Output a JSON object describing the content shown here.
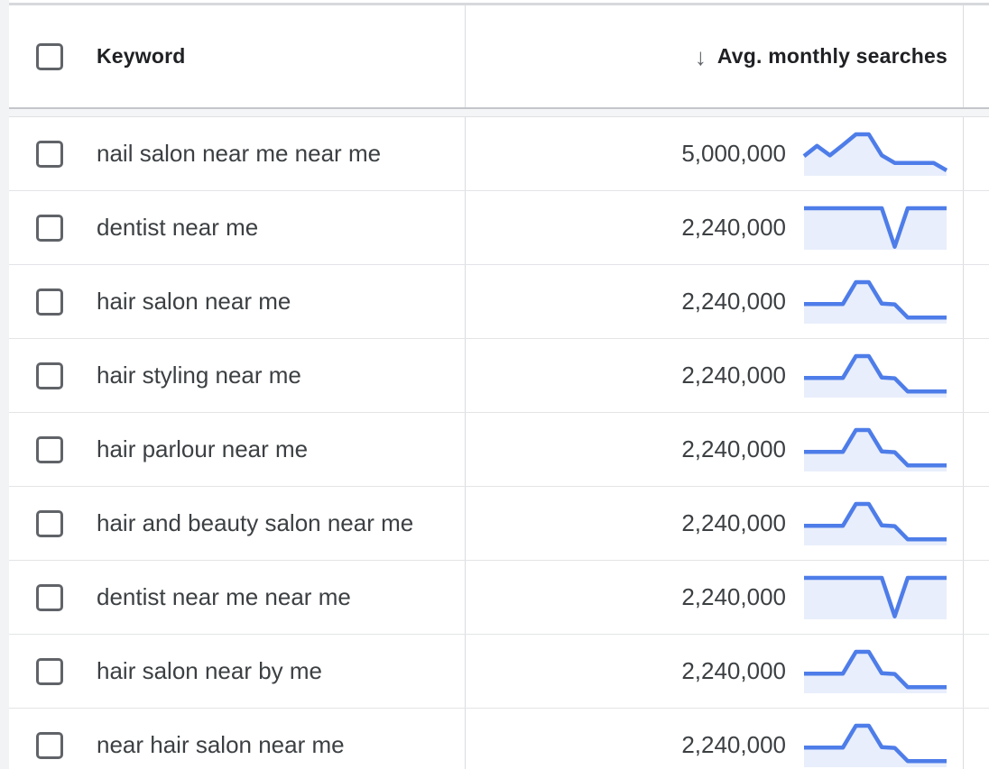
{
  "page": {
    "background": "#ffffff",
    "left_margin_color": "#f2f3f4"
  },
  "table": {
    "header": {
      "keyword_label": "Keyword",
      "metric_label": "Avg. monthly searches",
      "sort_icon_glyph": "↓",
      "sort_direction": "descending"
    },
    "rows": [
      {
        "keyword": "nail salon near me near me",
        "avg_monthly_searches": "5,000,000",
        "checked": false,
        "trend_12mo_normalized": [
          0.45,
          0.71,
          0.47,
          0.73,
          1,
          1,
          0.47,
          0.28,
          0.28,
          0.28,
          0.28,
          0.09
        ]
      },
      {
        "keyword": "dentist near me",
        "avg_monthly_searches": "2,240,000",
        "checked": false,
        "trend_12mo_normalized": [
          1,
          1,
          1,
          1,
          1,
          1,
          1,
          0.03,
          1,
          1,
          1,
          1
        ]
      },
      {
        "keyword": "hair salon near me",
        "avg_monthly_searches": "2,240,000",
        "checked": false,
        "trend_12mo_normalized": [
          0.45,
          0.45,
          0.45,
          0.45,
          1,
          1,
          0.46,
          0.44,
          0.11,
          0.11,
          0.11,
          0.11
        ]
      },
      {
        "keyword": "hair styling near me",
        "avg_monthly_searches": "2,240,000",
        "checked": false,
        "trend_12mo_normalized": [
          0.45,
          0.45,
          0.45,
          0.45,
          1,
          1,
          0.46,
          0.44,
          0.11,
          0.11,
          0.11,
          0.11
        ]
      },
      {
        "keyword": "hair parlour near me",
        "avg_monthly_searches": "2,240,000",
        "checked": false,
        "trend_12mo_normalized": [
          0.45,
          0.45,
          0.45,
          0.45,
          1,
          1,
          0.46,
          0.44,
          0.11,
          0.11,
          0.11,
          0.11
        ]
      },
      {
        "keyword": "hair and beauty salon near me",
        "avg_monthly_searches": "2,240,000",
        "checked": false,
        "trend_12mo_normalized": [
          0.45,
          0.45,
          0.45,
          0.45,
          1,
          1,
          0.46,
          0.44,
          0.11,
          0.11,
          0.11,
          0.11
        ]
      },
      {
        "keyword": "dentist near me near me",
        "avg_monthly_searches": "2,240,000",
        "checked": false,
        "trend_12mo_normalized": [
          1,
          1,
          1,
          1,
          1,
          1,
          1,
          0.03,
          1,
          1,
          1,
          1
        ]
      },
      {
        "keyword": "hair salon near by me",
        "avg_monthly_searches": "2,240,000",
        "checked": false,
        "trend_12mo_normalized": [
          0.45,
          0.45,
          0.45,
          0.45,
          1,
          1,
          0.46,
          0.44,
          0.11,
          0.11,
          0.11,
          0.11
        ]
      },
      {
        "keyword": "near hair salon near me",
        "avg_monthly_searches": "2,240,000",
        "checked": false,
        "trend_12mo_normalized": [
          0.45,
          0.45,
          0.45,
          0.45,
          1,
          1,
          0.46,
          0.44,
          0.11,
          0.11,
          0.11,
          0.11
        ]
      }
    ]
  },
  "colors": {
    "spark_line": "#4e7de9",
    "spark_fill": "#e8eefb",
    "text_primary": "#3c4043",
    "header_text": "#202124",
    "icon_grey": "#5f6368",
    "checkbox_border": "#606368",
    "row_divider": "#e3e4e7",
    "column_divider": "#dadce0",
    "header_bottom_border": "#c3c6ca",
    "table_top_border": "#d7d9dc"
  }
}
